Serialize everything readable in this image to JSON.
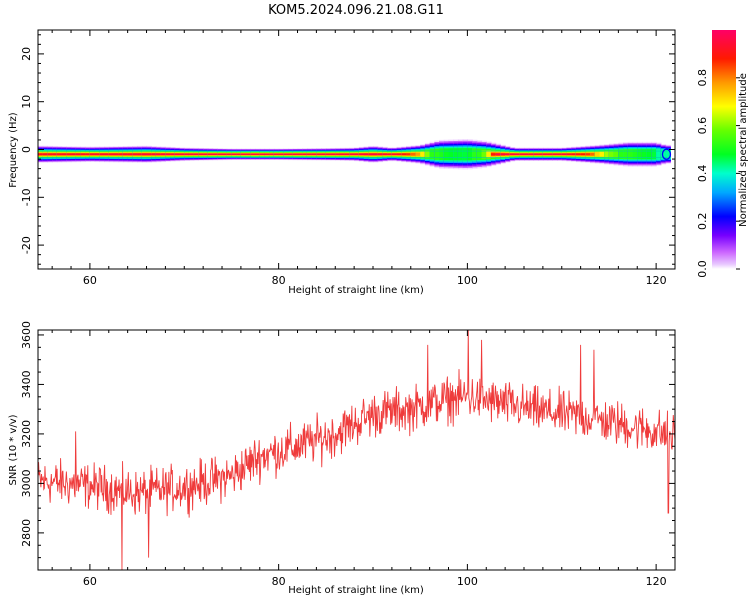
{
  "title": "KOM5.2024.096.21.08.G11",
  "chart_data": [
    {
      "type": "heatmap",
      "xlabel": "Height of straight line (km)",
      "ylabel": "Frequency (Hz)",
      "xlim": [
        54.5,
        122
      ],
      "ylim": [
        -25,
        25
      ],
      "xticks": [
        60,
        80,
        100,
        120
      ],
      "yticks": [
        20,
        10,
        0,
        -10,
        -20
      ],
      "colorbar": {
        "label": "Normalized spectral amplitude",
        "range": [
          0,
          1
        ],
        "ticks": [
          "0.0",
          "0.2",
          "0.4",
          "0.6",
          "0.8"
        ],
        "colormap": "gist_rainbow_r"
      },
      "band_center_hz": -1,
      "core_profile": {
        "heights_km": [
          55,
          58,
          62,
          66,
          70,
          75,
          80,
          85,
          90,
          93,
          95,
          96,
          98,
          100,
          102,
          103,
          106,
          110,
          113,
          115,
          118,
          121
        ],
        "normalized_amplitude": [
          0.92,
          0.93,
          0.94,
          0.95,
          0.98,
          1.0,
          0.99,
          0.98,
          0.96,
          0.93,
          0.75,
          0.55,
          0.48,
          0.47,
          0.6,
          0.98,
          0.99,
          0.97,
          0.85,
          0.6,
          0.5,
          0.45
        ]
      },
      "halo_halfwidth_hz": {
        "heights_km": [
          55,
          60,
          66,
          70,
          75,
          80,
          85,
          88,
          90,
          92,
          95,
          97,
          100,
          102,
          105,
          110,
          114,
          117,
          120,
          121
        ],
        "values": [
          1.8,
          1.6,
          1.8,
          1.4,
          1.2,
          1.2,
          1.3,
          1.4,
          1.8,
          1.4,
          2.0,
          3.0,
          3.2,
          2.8,
          1.4,
          1.4,
          2.0,
          2.6,
          2.6,
          2.0
        ]
      }
    },
    {
      "type": "line",
      "xlabel": "Height of straight line (km)",
      "ylabel": "SNR (10 * v/v)",
      "xlim": [
        54.5,
        122
      ],
      "ylim": [
        2650,
        3620
      ],
      "xticks": [
        60,
        80,
        100,
        120
      ],
      "yticks": [
        2800,
        3000,
        3200,
        3400,
        3600
      ],
      "color": "#ef3b3b",
      "series": [
        {
          "x_start_km": 54.5,
          "x_end_km": 122,
          "trend": {
            "x": [
              54.5,
              60,
              65,
              70,
              75,
              78,
              82,
              86,
              90,
              94,
              98,
              100,
              104,
              108,
              112,
              116,
              120,
              122
            ],
            "y": [
              3010,
              2990,
              2960,
              2985,
              3030,
              3110,
              3150,
              3200,
              3280,
              3300,
              3340,
              3350,
              3320,
              3290,
              3270,
              3240,
              3210,
              3190
            ]
          },
          "noise_amplitude": 75,
          "spikes": [
            {
              "x": 63.4,
              "y": 2650
            },
            {
              "x": 66.2,
              "y": 2700
            },
            {
              "x": 95.8,
              "y": 3560
            },
            {
              "x": 100.1,
              "y": 3625
            },
            {
              "x": 101.5,
              "y": 3580
            },
            {
              "x": 112.0,
              "y": 3560
            },
            {
              "x": 113.4,
              "y": 3540
            },
            {
              "x": 121.3,
              "y": 2880
            },
            {
              "x": 58.5,
              "y": 3210
            }
          ]
        }
      ]
    }
  ]
}
